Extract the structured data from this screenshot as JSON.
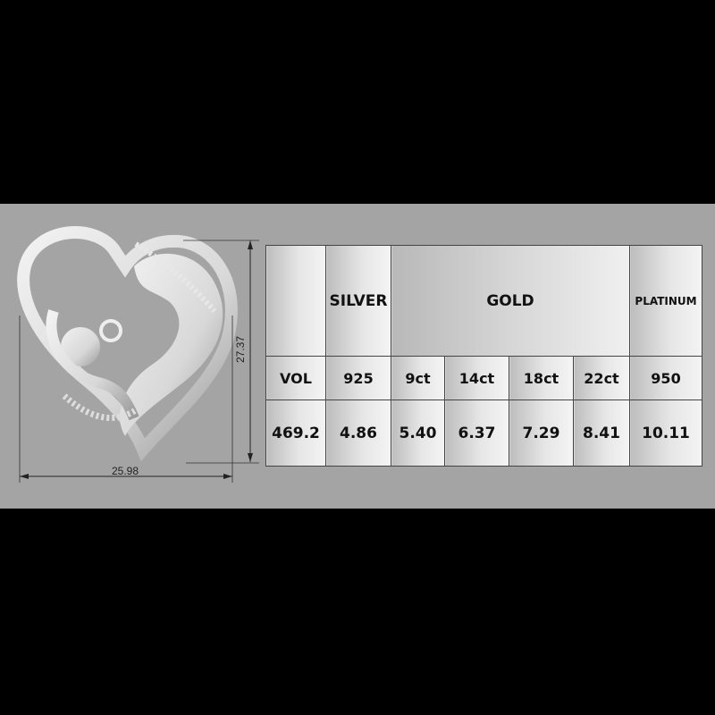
{
  "dimensions": {
    "width": "25.98",
    "height": "27.37"
  },
  "table": {
    "header": {
      "blank": "",
      "silver": "SILVER",
      "gold": "GOLD",
      "platinum": "PLATINUM"
    },
    "subheader": [
      "VOL",
      "925",
      "9ct",
      "14ct",
      "18ct",
      "22ct",
      "950"
    ],
    "values": [
      "469.2",
      "4.86",
      "5.40",
      "6.37",
      "7.29",
      "8.41",
      "10.11"
    ]
  },
  "colors": {
    "background": "#000000",
    "panel": "#a4a4a4"
  }
}
